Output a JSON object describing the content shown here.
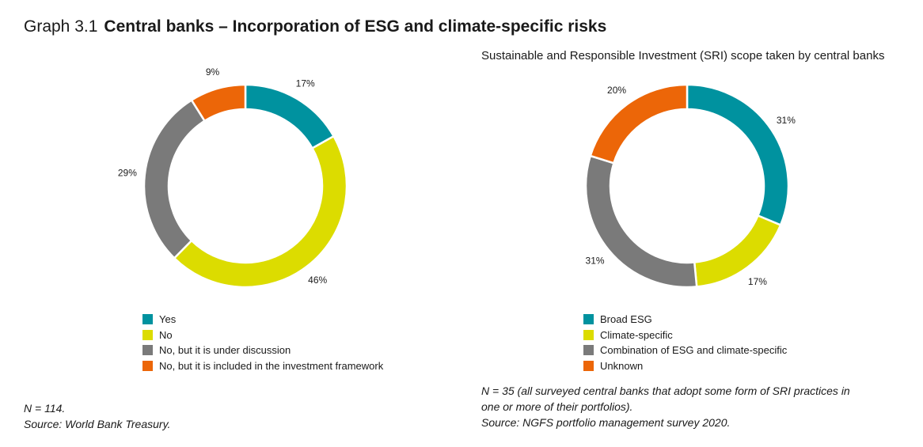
{
  "header": {
    "graph_number": "Graph 3.1",
    "title": "Central banks – Incorporation of ESG and climate-specific risks"
  },
  "chart_data": [
    {
      "type": "pie",
      "donut": true,
      "title": "",
      "categories": [
        "Yes",
        "No",
        "No, but it is under discussion",
        "No, but it is included in the investment framework"
      ],
      "values": [
        17,
        46,
        29,
        9
      ],
      "labels": [
        "17%",
        "46%",
        "29%",
        "9%"
      ],
      "colors": [
        "#00929f",
        "#dcdc00",
        "#7a7a7a",
        "#ec6608"
      ],
      "legend_position": "bottom-left",
      "note_lines": [
        "N = 114.",
        "Source: World Bank Treasury."
      ]
    },
    {
      "type": "pie",
      "donut": true,
      "title": "Sustainable and Responsible Investment (SRI) scope taken by central banks",
      "categories": [
        "Broad ESG",
        "Climate-specific",
        "Combination of ESG and climate-specific",
        "Unknown"
      ],
      "values": [
        31,
        17,
        31,
        20
      ],
      "labels": [
        "31%",
        "17%",
        "31%",
        "20%"
      ],
      "colors": [
        "#00929f",
        "#dcdc00",
        "#7a7a7a",
        "#ec6608"
      ],
      "legend_position": "bottom-left",
      "note_lines": [
        "N = 35 (all surveyed central banks that adopt some form of SRI practices in",
        "one or more of their portfolios).",
        "Source: NGFS portfolio management survey 2020."
      ]
    }
  ]
}
